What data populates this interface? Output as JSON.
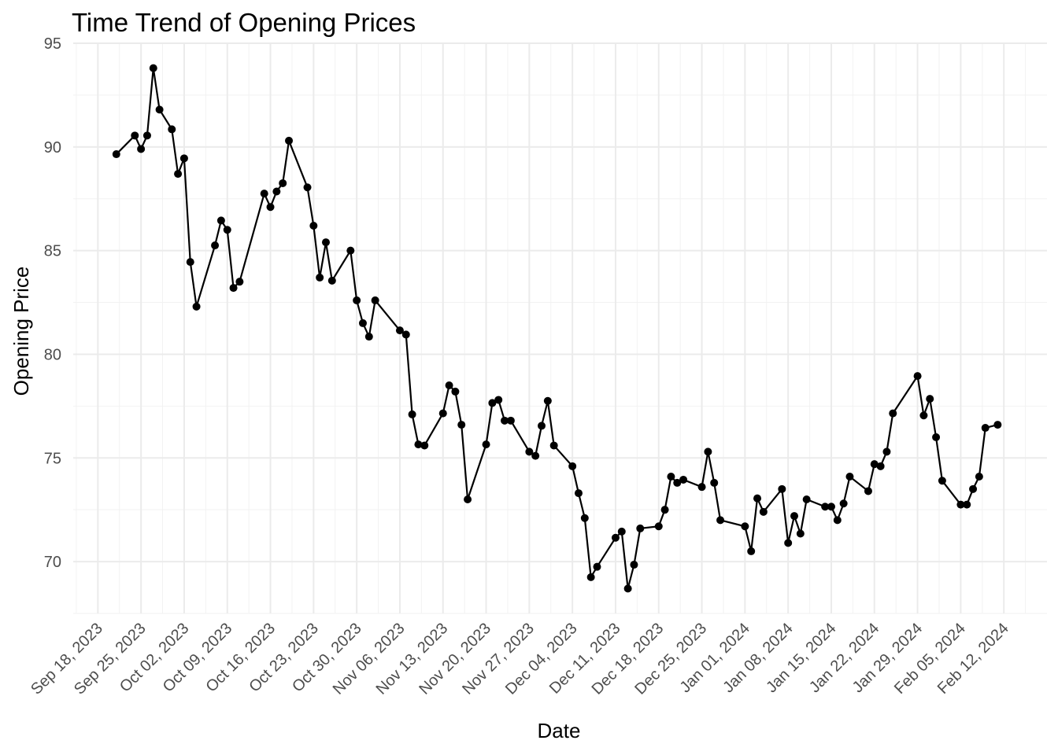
{
  "chart_data": {
    "type": "line",
    "title": "Time Trend of Opening Prices",
    "xlabel": "Date",
    "ylabel": "Opening Price",
    "xlim": [
      "2023-09-14",
      "2024-02-19"
    ],
    "ylim": [
      67.5,
      95
    ],
    "y_ticks": [
      70,
      75,
      80,
      85,
      90,
      95
    ],
    "x_ticks": [
      {
        "date": "2023-09-18",
        "label": "Sep 18, 2023"
      },
      {
        "date": "2023-09-25",
        "label": "Sep 25, 2023"
      },
      {
        "date": "2023-10-02",
        "label": "Oct 02, 2023"
      },
      {
        "date": "2023-10-09",
        "label": "Oct 09, 2023"
      },
      {
        "date": "2023-10-16",
        "label": "Oct 16, 2023"
      },
      {
        "date": "2023-10-23",
        "label": "Oct 23, 2023"
      },
      {
        "date": "2023-10-30",
        "label": "Oct 30, 2023"
      },
      {
        "date": "2023-11-06",
        "label": "Nov 06, 2023"
      },
      {
        "date": "2023-11-13",
        "label": "Nov 13, 2023"
      },
      {
        "date": "2023-11-20",
        "label": "Nov 20, 2023"
      },
      {
        "date": "2023-11-27",
        "label": "Nov 27, 2023"
      },
      {
        "date": "2023-12-04",
        "label": "Dec 04, 2023"
      },
      {
        "date": "2023-12-11",
        "label": "Dec 11, 2023"
      },
      {
        "date": "2023-12-18",
        "label": "Dec 18, 2023"
      },
      {
        "date": "2023-12-25",
        "label": "Dec 25, 2023"
      },
      {
        "date": "2024-01-01",
        "label": "Jan 01, 2024"
      },
      {
        "date": "2024-01-08",
        "label": "Jan 08, 2024"
      },
      {
        "date": "2024-01-15",
        "label": "Jan 15, 2024"
      },
      {
        "date": "2024-01-22",
        "label": "Jan 22, 2024"
      },
      {
        "date": "2024-01-29",
        "label": "Jan 29, 2024"
      },
      {
        "date": "2024-02-05",
        "label": "Feb 05, 2024"
      },
      {
        "date": "2024-02-12",
        "label": "Feb 12, 2024"
      }
    ],
    "grid": true,
    "colors": {
      "series": "#000000",
      "grid_major": "#ebebeb",
      "grid_minor": "#f2f2f2",
      "tick_text": "#4d4d4d"
    },
    "series": [
      {
        "x": [
          "2023-09-21",
          "2023-09-24",
          "2023-09-25",
          "2023-09-26",
          "2023-09-27",
          "2023-09-28",
          "2023-09-30",
          "2023-10-01",
          "2023-10-02",
          "2023-10-03",
          "2023-10-04",
          "2023-10-07",
          "2023-10-08",
          "2023-10-09",
          "2023-10-10",
          "2023-10-11",
          "2023-10-15",
          "2023-10-16",
          "2023-10-17",
          "2023-10-18",
          "2023-10-19",
          "2023-10-22",
          "2023-10-23",
          "2023-10-24",
          "2023-10-25",
          "2023-10-26",
          "2023-10-29",
          "2023-10-30",
          "2023-10-31",
          "2023-11-01",
          "2023-11-02",
          "2023-11-06",
          "2023-11-07",
          "2023-11-08",
          "2023-11-09",
          "2023-11-10",
          "2023-11-13",
          "2023-11-14",
          "2023-11-15",
          "2023-11-16",
          "2023-11-17",
          "2023-11-20",
          "2023-11-21",
          "2023-11-22",
          "2023-11-23",
          "2023-11-24",
          "2023-11-27",
          "2023-11-28",
          "2023-11-29",
          "2023-11-30",
          "2023-12-01",
          "2023-12-04",
          "2023-12-05",
          "2023-12-06",
          "2023-12-07",
          "2023-12-08",
          "2023-12-11",
          "2023-12-12",
          "2023-12-13",
          "2023-12-14",
          "2023-12-15",
          "2023-12-18",
          "2023-12-19",
          "2023-12-20",
          "2023-12-21",
          "2023-12-22",
          "2023-12-25",
          "2023-12-26",
          "2023-12-27",
          "2023-12-28",
          "2024-01-01",
          "2024-01-02",
          "2024-01-03",
          "2024-01-04",
          "2024-01-07",
          "2024-01-08",
          "2024-01-09",
          "2024-01-10",
          "2024-01-11",
          "2024-01-14",
          "2024-01-15",
          "2024-01-16",
          "2024-01-17",
          "2024-01-18",
          "2024-01-21",
          "2024-01-22",
          "2024-01-23",
          "2024-01-24",
          "2024-01-25",
          "2024-01-29",
          "2024-01-30",
          "2024-01-31",
          "2024-02-01",
          "2024-02-02",
          "2024-02-05",
          "2024-02-06",
          "2024-02-07",
          "2024-02-08",
          "2024-02-09",
          "2024-02-11"
        ],
        "values": [
          89.65,
          90.55,
          89.9,
          90.55,
          93.8,
          91.8,
          90.85,
          88.7,
          89.45,
          84.45,
          82.3,
          85.25,
          86.45,
          86.0,
          83.2,
          83.5,
          87.75,
          87.1,
          87.85,
          88.25,
          90.3,
          88.05,
          86.2,
          83.7,
          85.4,
          83.55,
          85.0,
          82.6,
          81.5,
          80.85,
          82.6,
          81.15,
          80.95,
          77.1,
          75.65,
          75.6,
          77.15,
          78.5,
          78.2,
          76.6,
          73.0,
          75.65,
          77.65,
          77.8,
          76.8,
          76.8,
          75.3,
          75.1,
          76.55,
          77.75,
          75.6,
          74.6,
          73.3,
          72.1,
          69.25,
          69.75,
          71.15,
          71.45,
          68.7,
          69.85,
          71.6,
          71.7,
          72.5,
          74.1,
          73.8,
          73.95,
          73.6,
          75.3,
          73.8,
          72.0,
          71.7,
          70.5,
          73.05,
          72.4,
          73.5,
          70.9,
          72.2,
          71.35,
          73.0,
          72.65,
          72.65,
          72.0,
          72.8,
          74.1,
          73.4,
          74.7,
          74.6,
          75.3,
          77.15,
          78.95,
          77.05,
          77.85,
          76.0,
          73.9,
          72.75,
          72.75,
          73.5,
          74.1,
          76.45,
          76.6
        ]
      }
    ]
  }
}
